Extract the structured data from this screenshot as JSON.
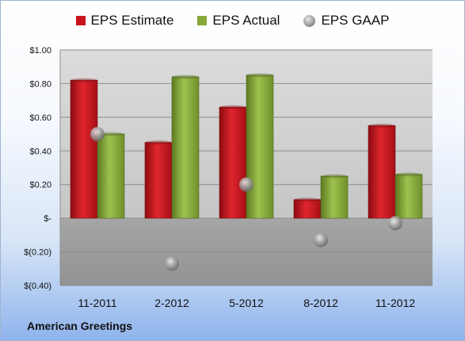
{
  "chart_data": {
    "type": "bar",
    "categories": [
      "11-2011",
      "2-2012",
      "5-2012",
      "8-2012",
      "11-2012"
    ],
    "series": [
      {
        "name": "EPS Estimate",
        "kind": "bar",
        "color": "#c8141c",
        "values": [
          0.82,
          0.45,
          0.66,
          0.11,
          0.55
        ]
      },
      {
        "name": "EPS Actual",
        "kind": "bar",
        "color": "#86a83a",
        "values": [
          0.5,
          0.84,
          0.85,
          0.25,
          0.26
        ]
      },
      {
        "name": "EPS GAAP",
        "kind": "marker",
        "color": "#9a9a9a",
        "values": [
          0.5,
          -0.27,
          0.2,
          -0.13,
          -0.03
        ]
      }
    ],
    "ylim": [
      -0.4,
      1.0
    ],
    "yticks": [
      1.0,
      0.8,
      0.6,
      0.4,
      0.2,
      0,
      -0.2,
      -0.4
    ],
    "ytick_labels": [
      "$1.00",
      "$0.80",
      "$0.60",
      "$0.40",
      "$0.20",
      "$-",
      "$(0.20)",
      "$(0.40)"
    ],
    "legend_position": "top",
    "grid": true
  },
  "legend": {
    "estimate": "EPS Estimate",
    "actual": "EPS Actual",
    "gaap": "EPS GAAP"
  },
  "footer": {
    "company": "American Greetings"
  }
}
